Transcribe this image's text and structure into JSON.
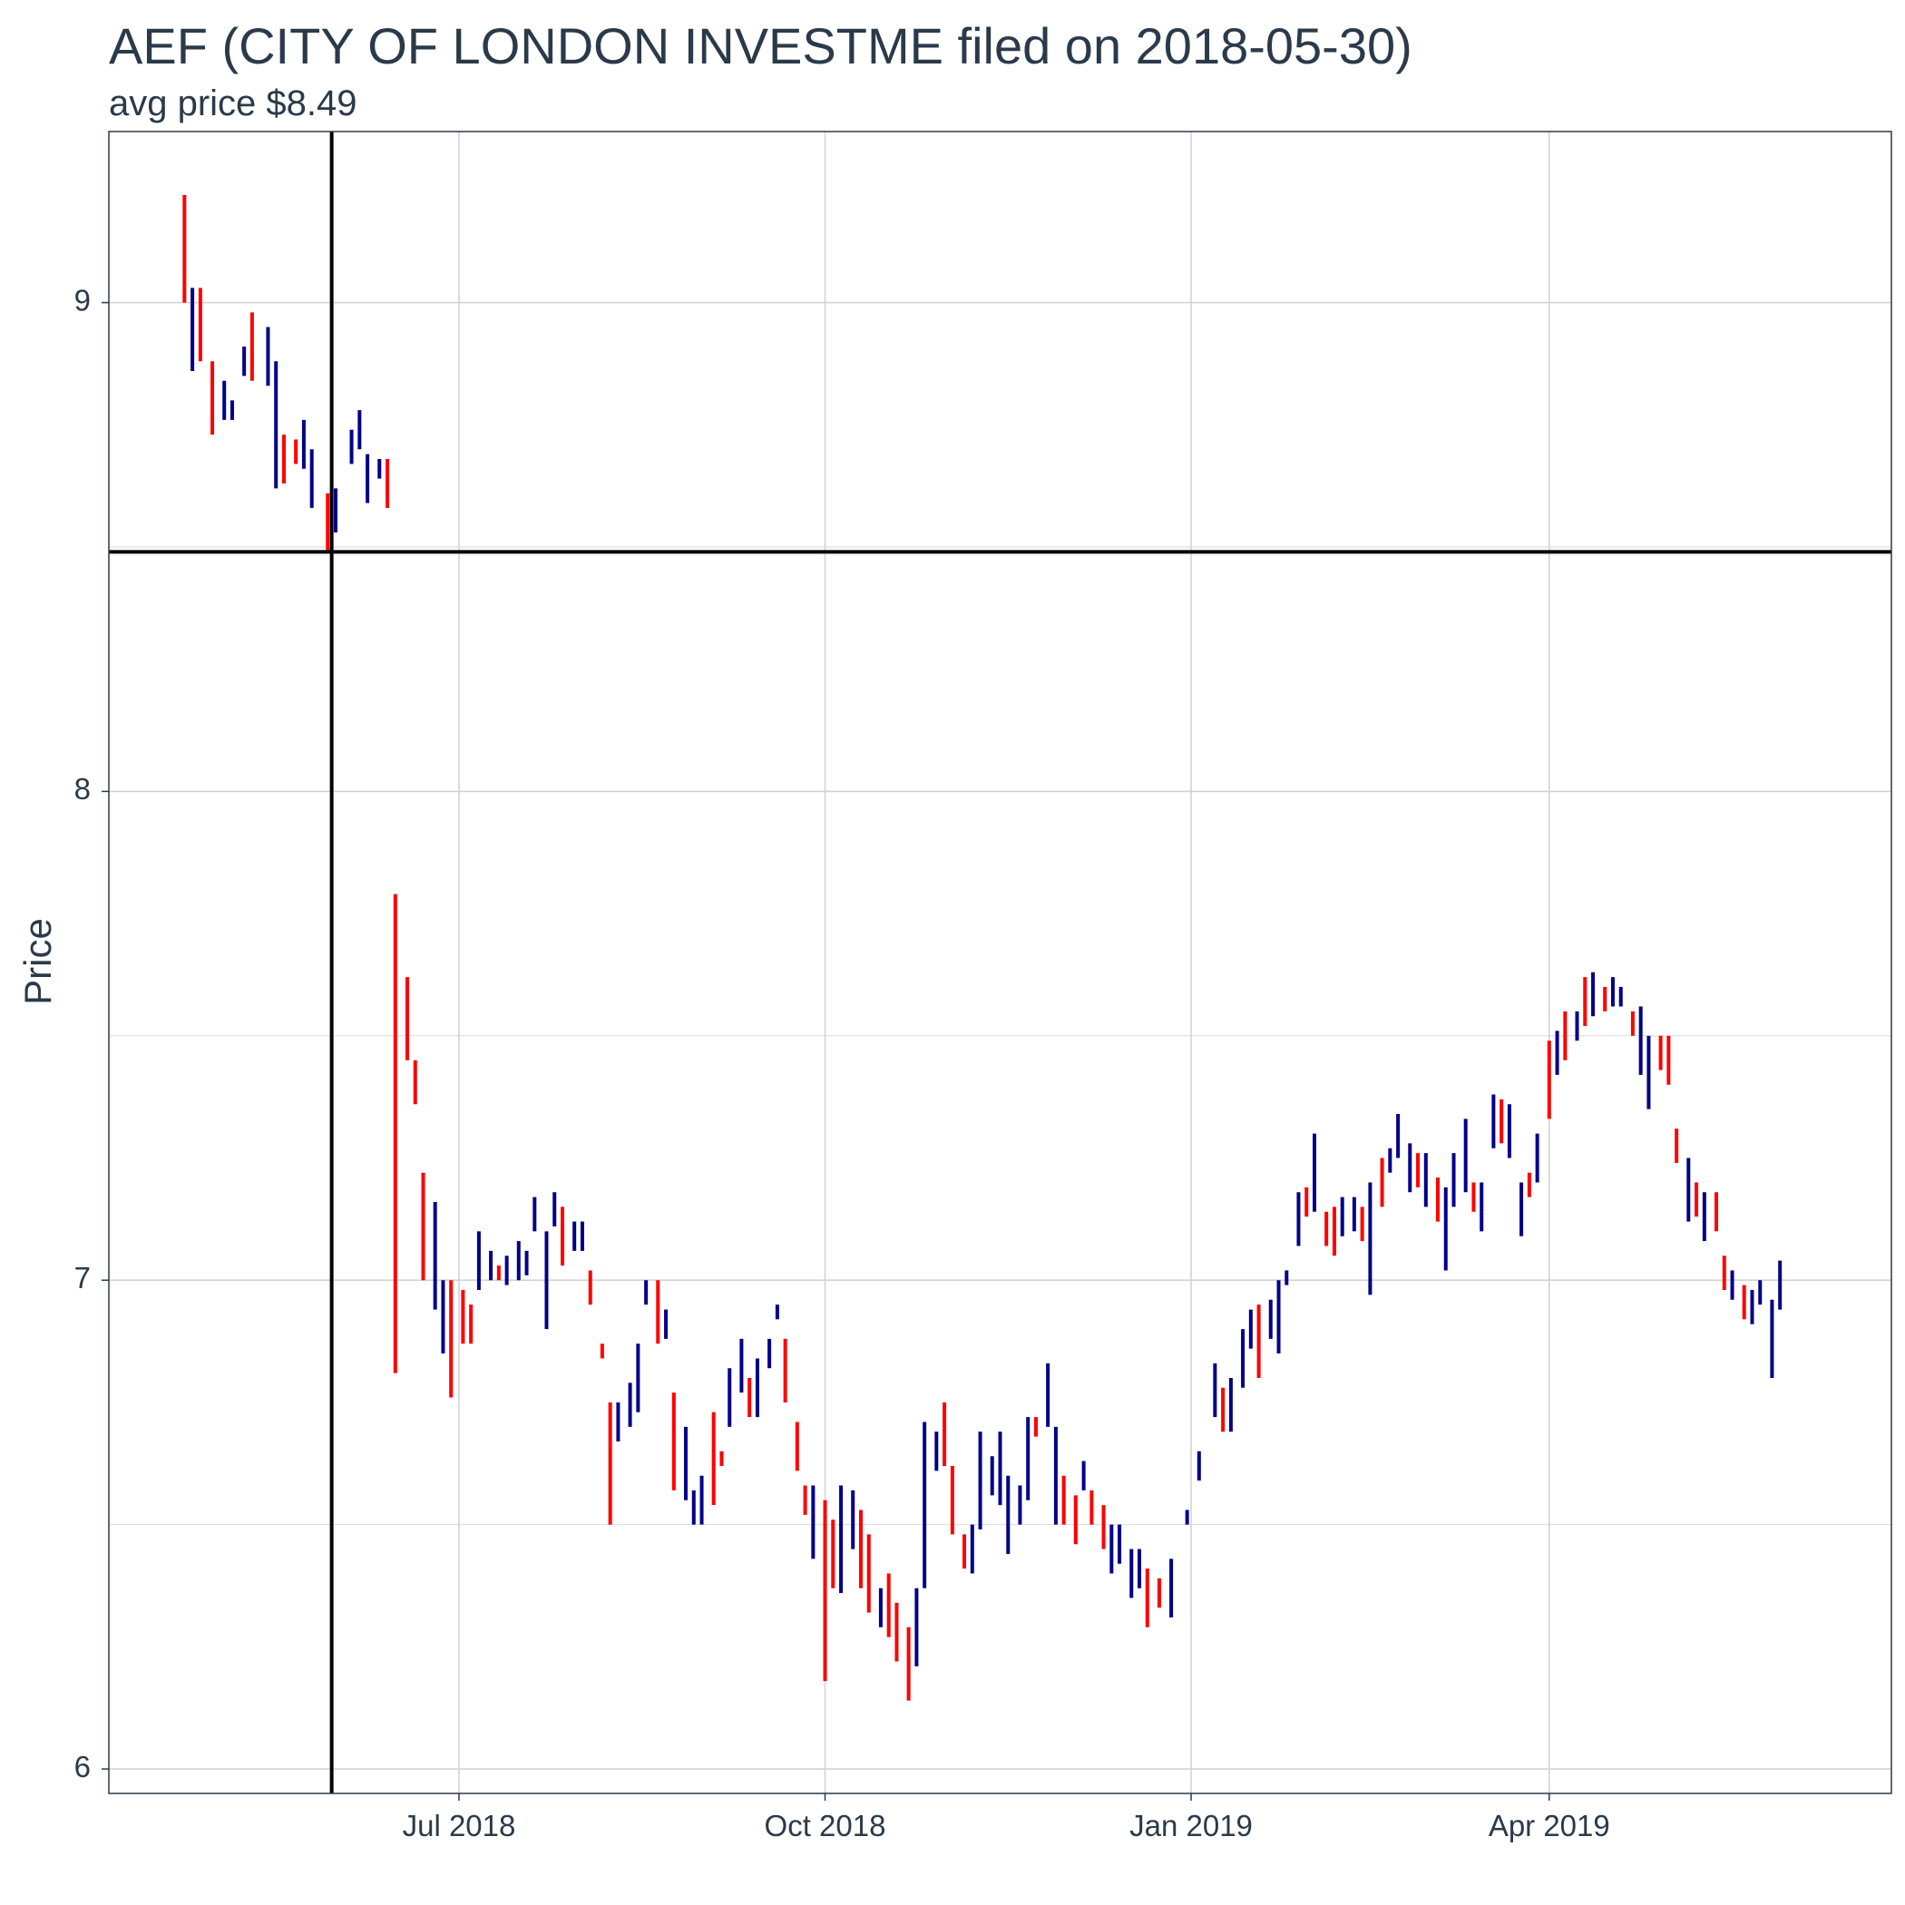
{
  "chart_data": {
    "type": "ohlc",
    "title": "AEF (CITY OF LONDON INVESTME filed on 2018-05-30)",
    "subtitle": "avg price $8.49",
    "xlabel": "",
    "ylabel": "Price",
    "ylim": [
      5.95,
      9.35
    ],
    "xlim": [
      "2018-04-04",
      "2019-06-26"
    ],
    "y_ticks": [
      6,
      7,
      8,
      9
    ],
    "x_ticks": [
      {
        "date": "2018-07-01",
        "label": "Jul 2018"
      },
      {
        "date": "2018-10-01",
        "label": "Oct 2018"
      },
      {
        "date": "2019-01-01",
        "label": "Jan 2019"
      },
      {
        "date": "2019-04-01",
        "label": "Apr 2019"
      }
    ],
    "reference_lines": {
      "vertical_date": "2018-05-30",
      "horizontal_price": 8.49
    },
    "grid": true,
    "colors": {
      "up": "#00008b",
      "down": "#ff0000",
      "reference": "#000000",
      "grid": "#d3d3d3"
    },
    "segments": [
      {
        "d": "2018-04-23",
        "lo": 9.0,
        "hi": 9.22,
        "c": "down"
      },
      {
        "d": "2018-04-25",
        "lo": 8.86,
        "hi": 9.03,
        "c": "up"
      },
      {
        "d": "2018-04-27",
        "lo": 8.88,
        "hi": 9.03,
        "c": "down"
      },
      {
        "d": "2018-04-30",
        "lo": 8.73,
        "hi": 8.88,
        "c": "down"
      },
      {
        "d": "2018-05-03",
        "lo": 8.76,
        "hi": 8.84,
        "c": "up"
      },
      {
        "d": "2018-05-05",
        "lo": 8.76,
        "hi": 8.8,
        "c": "up"
      },
      {
        "d": "2018-05-08",
        "lo": 8.85,
        "hi": 8.91,
        "c": "up"
      },
      {
        "d": "2018-05-10",
        "lo": 8.84,
        "hi": 8.98,
        "c": "down"
      },
      {
        "d": "2018-05-14",
        "lo": 8.83,
        "hi": 8.95,
        "c": "up"
      },
      {
        "d": "2018-05-16",
        "lo": 8.62,
        "hi": 8.88,
        "c": "up"
      },
      {
        "d": "2018-05-18",
        "lo": 8.63,
        "hi": 8.73,
        "c": "down"
      },
      {
        "d": "2018-05-21",
        "lo": 8.67,
        "hi": 8.72,
        "c": "down"
      },
      {
        "d": "2018-05-23",
        "lo": 8.66,
        "hi": 8.76,
        "c": "up"
      },
      {
        "d": "2018-05-25",
        "lo": 8.58,
        "hi": 8.7,
        "c": "up"
      },
      {
        "d": "2018-05-29",
        "lo": 8.49,
        "hi": 8.61,
        "c": "down"
      },
      {
        "d": "2018-05-31",
        "lo": 8.53,
        "hi": 8.62,
        "c": "up"
      },
      {
        "d": "2018-06-04",
        "lo": 8.67,
        "hi": 8.74,
        "c": "up"
      },
      {
        "d": "2018-06-06",
        "lo": 8.7,
        "hi": 8.78,
        "c": "up"
      },
      {
        "d": "2018-06-08",
        "lo": 8.59,
        "hi": 8.69,
        "c": "up"
      },
      {
        "d": "2018-06-11",
        "lo": 8.64,
        "hi": 8.68,
        "c": "up"
      },
      {
        "d": "2018-06-13",
        "lo": 8.58,
        "hi": 8.68,
        "c": "down"
      },
      {
        "d": "2018-06-15",
        "lo": 6.81,
        "hi": 7.79,
        "c": "down"
      },
      {
        "d": "2018-06-18",
        "lo": 7.45,
        "hi": 7.62,
        "c": "down"
      },
      {
        "d": "2018-06-20",
        "lo": 7.36,
        "hi": 7.45,
        "c": "down"
      },
      {
        "d": "2018-06-22",
        "lo": 7.0,
        "hi": 7.22,
        "c": "down"
      },
      {
        "d": "2018-06-25",
        "lo": 6.94,
        "hi": 7.16,
        "c": "up"
      },
      {
        "d": "2018-06-27",
        "lo": 6.85,
        "hi": 7.0,
        "c": "up"
      },
      {
        "d": "2018-06-29",
        "lo": 6.76,
        "hi": 7.0,
        "c": "down"
      },
      {
        "d": "2018-07-02",
        "lo": 6.87,
        "hi": 6.98,
        "c": "down"
      },
      {
        "d": "2018-07-04",
        "lo": 6.87,
        "hi": 6.95,
        "c": "down"
      },
      {
        "d": "2018-07-06",
        "lo": 6.98,
        "hi": 7.1,
        "c": "up"
      },
      {
        "d": "2018-07-09",
        "lo": 7.0,
        "hi": 7.06,
        "c": "up"
      },
      {
        "d": "2018-07-11",
        "lo": 7.0,
        "hi": 7.03,
        "c": "down"
      },
      {
        "d": "2018-07-13",
        "lo": 6.99,
        "hi": 7.05,
        "c": "up"
      },
      {
        "d": "2018-07-16",
        "lo": 7.0,
        "hi": 7.08,
        "c": "up"
      },
      {
        "d": "2018-07-18",
        "lo": 7.01,
        "hi": 7.06,
        "c": "up"
      },
      {
        "d": "2018-07-20",
        "lo": 7.1,
        "hi": 7.17,
        "c": "up"
      },
      {
        "d": "2018-07-23",
        "lo": 6.9,
        "hi": 7.1,
        "c": "up"
      },
      {
        "d": "2018-07-25",
        "lo": 7.11,
        "hi": 7.18,
        "c": "up"
      },
      {
        "d": "2018-07-27",
        "lo": 7.03,
        "hi": 7.15,
        "c": "down"
      },
      {
        "d": "2018-07-30",
        "lo": 7.06,
        "hi": 7.12,
        "c": "up"
      },
      {
        "d": "2018-08-01",
        "lo": 7.06,
        "hi": 7.12,
        "c": "up"
      },
      {
        "d": "2018-08-03",
        "lo": 6.95,
        "hi": 7.02,
        "c": "down"
      },
      {
        "d": "2018-08-06",
        "lo": 6.84,
        "hi": 6.87,
        "c": "down"
      },
      {
        "d": "2018-08-08",
        "lo": 6.5,
        "hi": 6.75,
        "c": "down"
      },
      {
        "d": "2018-08-10",
        "lo": 6.67,
        "hi": 6.75,
        "c": "up"
      },
      {
        "d": "2018-08-13",
        "lo": 6.7,
        "hi": 6.79,
        "c": "up"
      },
      {
        "d": "2018-08-15",
        "lo": 6.73,
        "hi": 6.87,
        "c": "up"
      },
      {
        "d": "2018-08-17",
        "lo": 6.95,
        "hi": 7.0,
        "c": "up"
      },
      {
        "d": "2018-08-20",
        "lo": 6.87,
        "hi": 7.0,
        "c": "down"
      },
      {
        "d": "2018-08-22",
        "lo": 6.88,
        "hi": 6.94,
        "c": "up"
      },
      {
        "d": "2018-08-24",
        "lo": 6.57,
        "hi": 6.77,
        "c": "down"
      },
      {
        "d": "2018-08-27",
        "lo": 6.55,
        "hi": 6.7,
        "c": "up"
      },
      {
        "d": "2018-08-29",
        "lo": 6.5,
        "hi": 6.57,
        "c": "up"
      },
      {
        "d": "2018-08-31",
        "lo": 6.5,
        "hi": 6.6,
        "c": "up"
      },
      {
        "d": "2018-09-03",
        "lo": 6.54,
        "hi": 6.73,
        "c": "down"
      },
      {
        "d": "2018-09-05",
        "lo": 6.62,
        "hi": 6.65,
        "c": "down"
      },
      {
        "d": "2018-09-07",
        "lo": 6.7,
        "hi": 6.82,
        "c": "up"
      },
      {
        "d": "2018-09-10",
        "lo": 6.77,
        "hi": 6.88,
        "c": "up"
      },
      {
        "d": "2018-09-12",
        "lo": 6.72,
        "hi": 6.8,
        "c": "down"
      },
      {
        "d": "2018-09-14",
        "lo": 6.72,
        "hi": 6.84,
        "c": "up"
      },
      {
        "d": "2018-09-17",
        "lo": 6.82,
        "hi": 6.88,
        "c": "up"
      },
      {
        "d": "2018-09-19",
        "lo": 6.92,
        "hi": 6.95,
        "c": "up"
      },
      {
        "d": "2018-09-21",
        "lo": 6.75,
        "hi": 6.88,
        "c": "down"
      },
      {
        "d": "2018-09-24",
        "lo": 6.61,
        "hi": 6.71,
        "c": "down"
      },
      {
        "d": "2018-09-26",
        "lo": 6.52,
        "hi": 6.58,
        "c": "down"
      },
      {
        "d": "2018-09-28",
        "lo": 6.43,
        "hi": 6.58,
        "c": "up"
      },
      {
        "d": "2018-10-01",
        "lo": 6.18,
        "hi": 6.55,
        "c": "down"
      },
      {
        "d": "2018-10-03",
        "lo": 6.37,
        "hi": 6.51,
        "c": "down"
      },
      {
        "d": "2018-10-05",
        "lo": 6.36,
        "hi": 6.58,
        "c": "up"
      },
      {
        "d": "2018-10-08",
        "lo": 6.45,
        "hi": 6.57,
        "c": "up"
      },
      {
        "d": "2018-10-10",
        "lo": 6.37,
        "hi": 6.53,
        "c": "down"
      },
      {
        "d": "2018-10-12",
        "lo": 6.32,
        "hi": 6.48,
        "c": "down"
      },
      {
        "d": "2018-10-15",
        "lo": 6.29,
        "hi": 6.37,
        "c": "up"
      },
      {
        "d": "2018-10-17",
        "lo": 6.27,
        "hi": 6.4,
        "c": "down"
      },
      {
        "d": "2018-10-19",
        "lo": 6.22,
        "hi": 6.34,
        "c": "down"
      },
      {
        "d": "2018-10-22",
        "lo": 6.14,
        "hi": 6.29,
        "c": "down"
      },
      {
        "d": "2018-10-24",
        "lo": 6.21,
        "hi": 6.37,
        "c": "up"
      },
      {
        "d": "2018-10-26",
        "lo": 6.37,
        "hi": 6.71,
        "c": "up"
      },
      {
        "d": "2018-10-29",
        "lo": 6.61,
        "hi": 6.69,
        "c": "up"
      },
      {
        "d": "2018-10-31",
        "lo": 6.62,
        "hi": 6.75,
        "c": "down"
      },
      {
        "d": "2018-11-02",
        "lo": 6.48,
        "hi": 6.62,
        "c": "down"
      },
      {
        "d": "2018-11-05",
        "lo": 6.41,
        "hi": 6.48,
        "c": "down"
      },
      {
        "d": "2018-11-07",
        "lo": 6.4,
        "hi": 6.5,
        "c": "up"
      },
      {
        "d": "2018-11-09",
        "lo": 6.49,
        "hi": 6.69,
        "c": "up"
      },
      {
        "d": "2018-11-12",
        "lo": 6.56,
        "hi": 6.64,
        "c": "up"
      },
      {
        "d": "2018-11-14",
        "lo": 6.54,
        "hi": 6.69,
        "c": "up"
      },
      {
        "d": "2018-11-16",
        "lo": 6.44,
        "hi": 6.6,
        "c": "up"
      },
      {
        "d": "2018-11-19",
        "lo": 6.5,
        "hi": 6.58,
        "c": "up"
      },
      {
        "d": "2018-11-21",
        "lo": 6.55,
        "hi": 6.72,
        "c": "up"
      },
      {
        "d": "2018-11-23",
        "lo": 6.68,
        "hi": 6.72,
        "c": "down"
      },
      {
        "d": "2018-11-26",
        "lo": 6.7,
        "hi": 6.83,
        "c": "up"
      },
      {
        "d": "2018-11-28",
        "lo": 6.5,
        "hi": 6.7,
        "c": "up"
      },
      {
        "d": "2018-11-30",
        "lo": 6.5,
        "hi": 6.6,
        "c": "down"
      },
      {
        "d": "2018-12-03",
        "lo": 6.46,
        "hi": 6.56,
        "c": "down"
      },
      {
        "d": "2018-12-05",
        "lo": 6.57,
        "hi": 6.63,
        "c": "up"
      },
      {
        "d": "2018-12-07",
        "lo": 6.5,
        "hi": 6.57,
        "c": "down"
      },
      {
        "d": "2018-12-10",
        "lo": 6.45,
        "hi": 6.54,
        "c": "down"
      },
      {
        "d": "2018-12-12",
        "lo": 6.4,
        "hi": 6.5,
        "c": "up"
      },
      {
        "d": "2018-12-14",
        "lo": 6.42,
        "hi": 6.5,
        "c": "up"
      },
      {
        "d": "2018-12-17",
        "lo": 6.35,
        "hi": 6.45,
        "c": "up"
      },
      {
        "d": "2018-12-19",
        "lo": 6.37,
        "hi": 6.45,
        "c": "up"
      },
      {
        "d": "2018-12-21",
        "lo": 6.29,
        "hi": 6.41,
        "c": "down"
      },
      {
        "d": "2018-12-24",
        "lo": 6.33,
        "hi": 6.39,
        "c": "down"
      },
      {
        "d": "2018-12-27",
        "lo": 6.31,
        "hi": 6.43,
        "c": "up"
      },
      {
        "d": "2018-12-31",
        "lo": 6.5,
        "hi": 6.53,
        "c": "up"
      },
      {
        "d": "2019-01-03",
        "lo": 6.59,
        "hi": 6.65,
        "c": "up"
      },
      {
        "d": "2019-01-07",
        "lo": 6.72,
        "hi": 6.83,
        "c": "up"
      },
      {
        "d": "2019-01-09",
        "lo": 6.69,
        "hi": 6.78,
        "c": "down"
      },
      {
        "d": "2019-01-11",
        "lo": 6.69,
        "hi": 6.8,
        "c": "up"
      },
      {
        "d": "2019-01-14",
        "lo": 6.78,
        "hi": 6.9,
        "c": "up"
      },
      {
        "d": "2019-01-16",
        "lo": 6.86,
        "hi": 6.94,
        "c": "up"
      },
      {
        "d": "2019-01-18",
        "lo": 6.8,
        "hi": 6.95,
        "c": "down"
      },
      {
        "d": "2019-01-21",
        "lo": 6.88,
        "hi": 6.96,
        "c": "up"
      },
      {
        "d": "2019-01-23",
        "lo": 6.85,
        "hi": 7.0,
        "c": "up"
      },
      {
        "d": "2019-01-25",
        "lo": 6.99,
        "hi": 7.02,
        "c": "up"
      },
      {
        "d": "2019-01-28",
        "lo": 7.07,
        "hi": 7.18,
        "c": "up"
      },
      {
        "d": "2019-01-30",
        "lo": 7.13,
        "hi": 7.19,
        "c": "down"
      },
      {
        "d": "2019-02-01",
        "lo": 7.14,
        "hi": 7.3,
        "c": "up"
      },
      {
        "d": "2019-02-04",
        "lo": 7.07,
        "hi": 7.14,
        "c": "down"
      },
      {
        "d": "2019-02-06",
        "lo": 7.05,
        "hi": 7.15,
        "c": "down"
      },
      {
        "d": "2019-02-08",
        "lo": 7.09,
        "hi": 7.17,
        "c": "up"
      },
      {
        "d": "2019-02-11",
        "lo": 7.1,
        "hi": 7.17,
        "c": "up"
      },
      {
        "d": "2019-02-13",
        "lo": 7.08,
        "hi": 7.15,
        "c": "down"
      },
      {
        "d": "2019-02-15",
        "lo": 6.97,
        "hi": 7.2,
        "c": "up"
      },
      {
        "d": "2019-02-18",
        "lo": 7.15,
        "hi": 7.25,
        "c": "down"
      },
      {
        "d": "2019-02-20",
        "lo": 7.22,
        "hi": 7.27,
        "c": "up"
      },
      {
        "d": "2019-02-22",
        "lo": 7.25,
        "hi": 7.34,
        "c": "up"
      },
      {
        "d": "2019-02-25",
        "lo": 7.18,
        "hi": 7.28,
        "c": "up"
      },
      {
        "d": "2019-02-27",
        "lo": 7.19,
        "hi": 7.26,
        "c": "down"
      },
      {
        "d": "2019-03-01",
        "lo": 7.15,
        "hi": 7.26,
        "c": "up"
      },
      {
        "d": "2019-03-04",
        "lo": 7.12,
        "hi": 7.21,
        "c": "down"
      },
      {
        "d": "2019-03-06",
        "lo": 7.02,
        "hi": 7.19,
        "c": "up"
      },
      {
        "d": "2019-03-08",
        "lo": 7.15,
        "hi": 7.26,
        "c": "up"
      },
      {
        "d": "2019-03-11",
        "lo": 7.18,
        "hi": 7.33,
        "c": "up"
      },
      {
        "d": "2019-03-13",
        "lo": 7.14,
        "hi": 7.2,
        "c": "down"
      },
      {
        "d": "2019-03-15",
        "lo": 7.1,
        "hi": 7.2,
        "c": "up"
      },
      {
        "d": "2019-03-18",
        "lo": 7.27,
        "hi": 7.38,
        "c": "up"
      },
      {
        "d": "2019-03-20",
        "lo": 7.28,
        "hi": 7.37,
        "c": "down"
      },
      {
        "d": "2019-03-22",
        "lo": 7.25,
        "hi": 7.36,
        "c": "up"
      },
      {
        "d": "2019-03-25",
        "lo": 7.09,
        "hi": 7.2,
        "c": "up"
      },
      {
        "d": "2019-03-27",
        "lo": 7.17,
        "hi": 7.22,
        "c": "down"
      },
      {
        "d": "2019-03-29",
        "lo": 7.2,
        "hi": 7.3,
        "c": "up"
      },
      {
        "d": "2019-04-01",
        "lo": 7.33,
        "hi": 7.49,
        "c": "down"
      },
      {
        "d": "2019-04-03",
        "lo": 7.42,
        "hi": 7.51,
        "c": "up"
      },
      {
        "d": "2019-04-05",
        "lo": 7.45,
        "hi": 7.55,
        "c": "down"
      },
      {
        "d": "2019-04-08",
        "lo": 7.49,
        "hi": 7.55,
        "c": "up"
      },
      {
        "d": "2019-04-10",
        "lo": 7.52,
        "hi": 7.62,
        "c": "down"
      },
      {
        "d": "2019-04-12",
        "lo": 7.54,
        "hi": 7.63,
        "c": "up"
      },
      {
        "d": "2019-04-15",
        "lo": 7.55,
        "hi": 7.6,
        "c": "down"
      },
      {
        "d": "2019-04-17",
        "lo": 7.56,
        "hi": 7.62,
        "c": "up"
      },
      {
        "d": "2019-04-19",
        "lo": 7.56,
        "hi": 7.6,
        "c": "up"
      },
      {
        "d": "2019-04-22",
        "lo": 7.5,
        "hi": 7.55,
        "c": "down"
      },
      {
        "d": "2019-04-24",
        "lo": 7.42,
        "hi": 7.56,
        "c": "up"
      },
      {
        "d": "2019-04-26",
        "lo": 7.35,
        "hi": 7.5,
        "c": "up"
      },
      {
        "d": "2019-04-29",
        "lo": 7.43,
        "hi": 7.5,
        "c": "down"
      },
      {
        "d": "2019-05-01",
        "lo": 7.4,
        "hi": 7.5,
        "c": "down"
      },
      {
        "d": "2019-05-03",
        "lo": 7.24,
        "hi": 7.31,
        "c": "down"
      },
      {
        "d": "2019-05-06",
        "lo": 7.12,
        "hi": 7.25,
        "c": "up"
      },
      {
        "d": "2019-05-08",
        "lo": 7.13,
        "hi": 7.2,
        "c": "down"
      },
      {
        "d": "2019-05-10",
        "lo": 7.08,
        "hi": 7.18,
        "c": "up"
      },
      {
        "d": "2019-05-13",
        "lo": 7.1,
        "hi": 7.18,
        "c": "down"
      },
      {
        "d": "2019-05-15",
        "lo": 6.98,
        "hi": 7.05,
        "c": "down"
      },
      {
        "d": "2019-05-17",
        "lo": 6.96,
        "hi": 7.02,
        "c": "up"
      },
      {
        "d": "2019-05-20",
        "lo": 6.92,
        "hi": 6.99,
        "c": "down"
      },
      {
        "d": "2019-05-22",
        "lo": 6.91,
        "hi": 6.98,
        "c": "up"
      },
      {
        "d": "2019-05-24",
        "lo": 6.95,
        "hi": 7.0,
        "c": "up"
      },
      {
        "d": "2019-05-27",
        "lo": 6.8,
        "hi": 6.96,
        "c": "up"
      },
      {
        "d": "2019-05-29",
        "lo": 6.94,
        "hi": 7.04,
        "c": "up"
      }
    ]
  }
}
